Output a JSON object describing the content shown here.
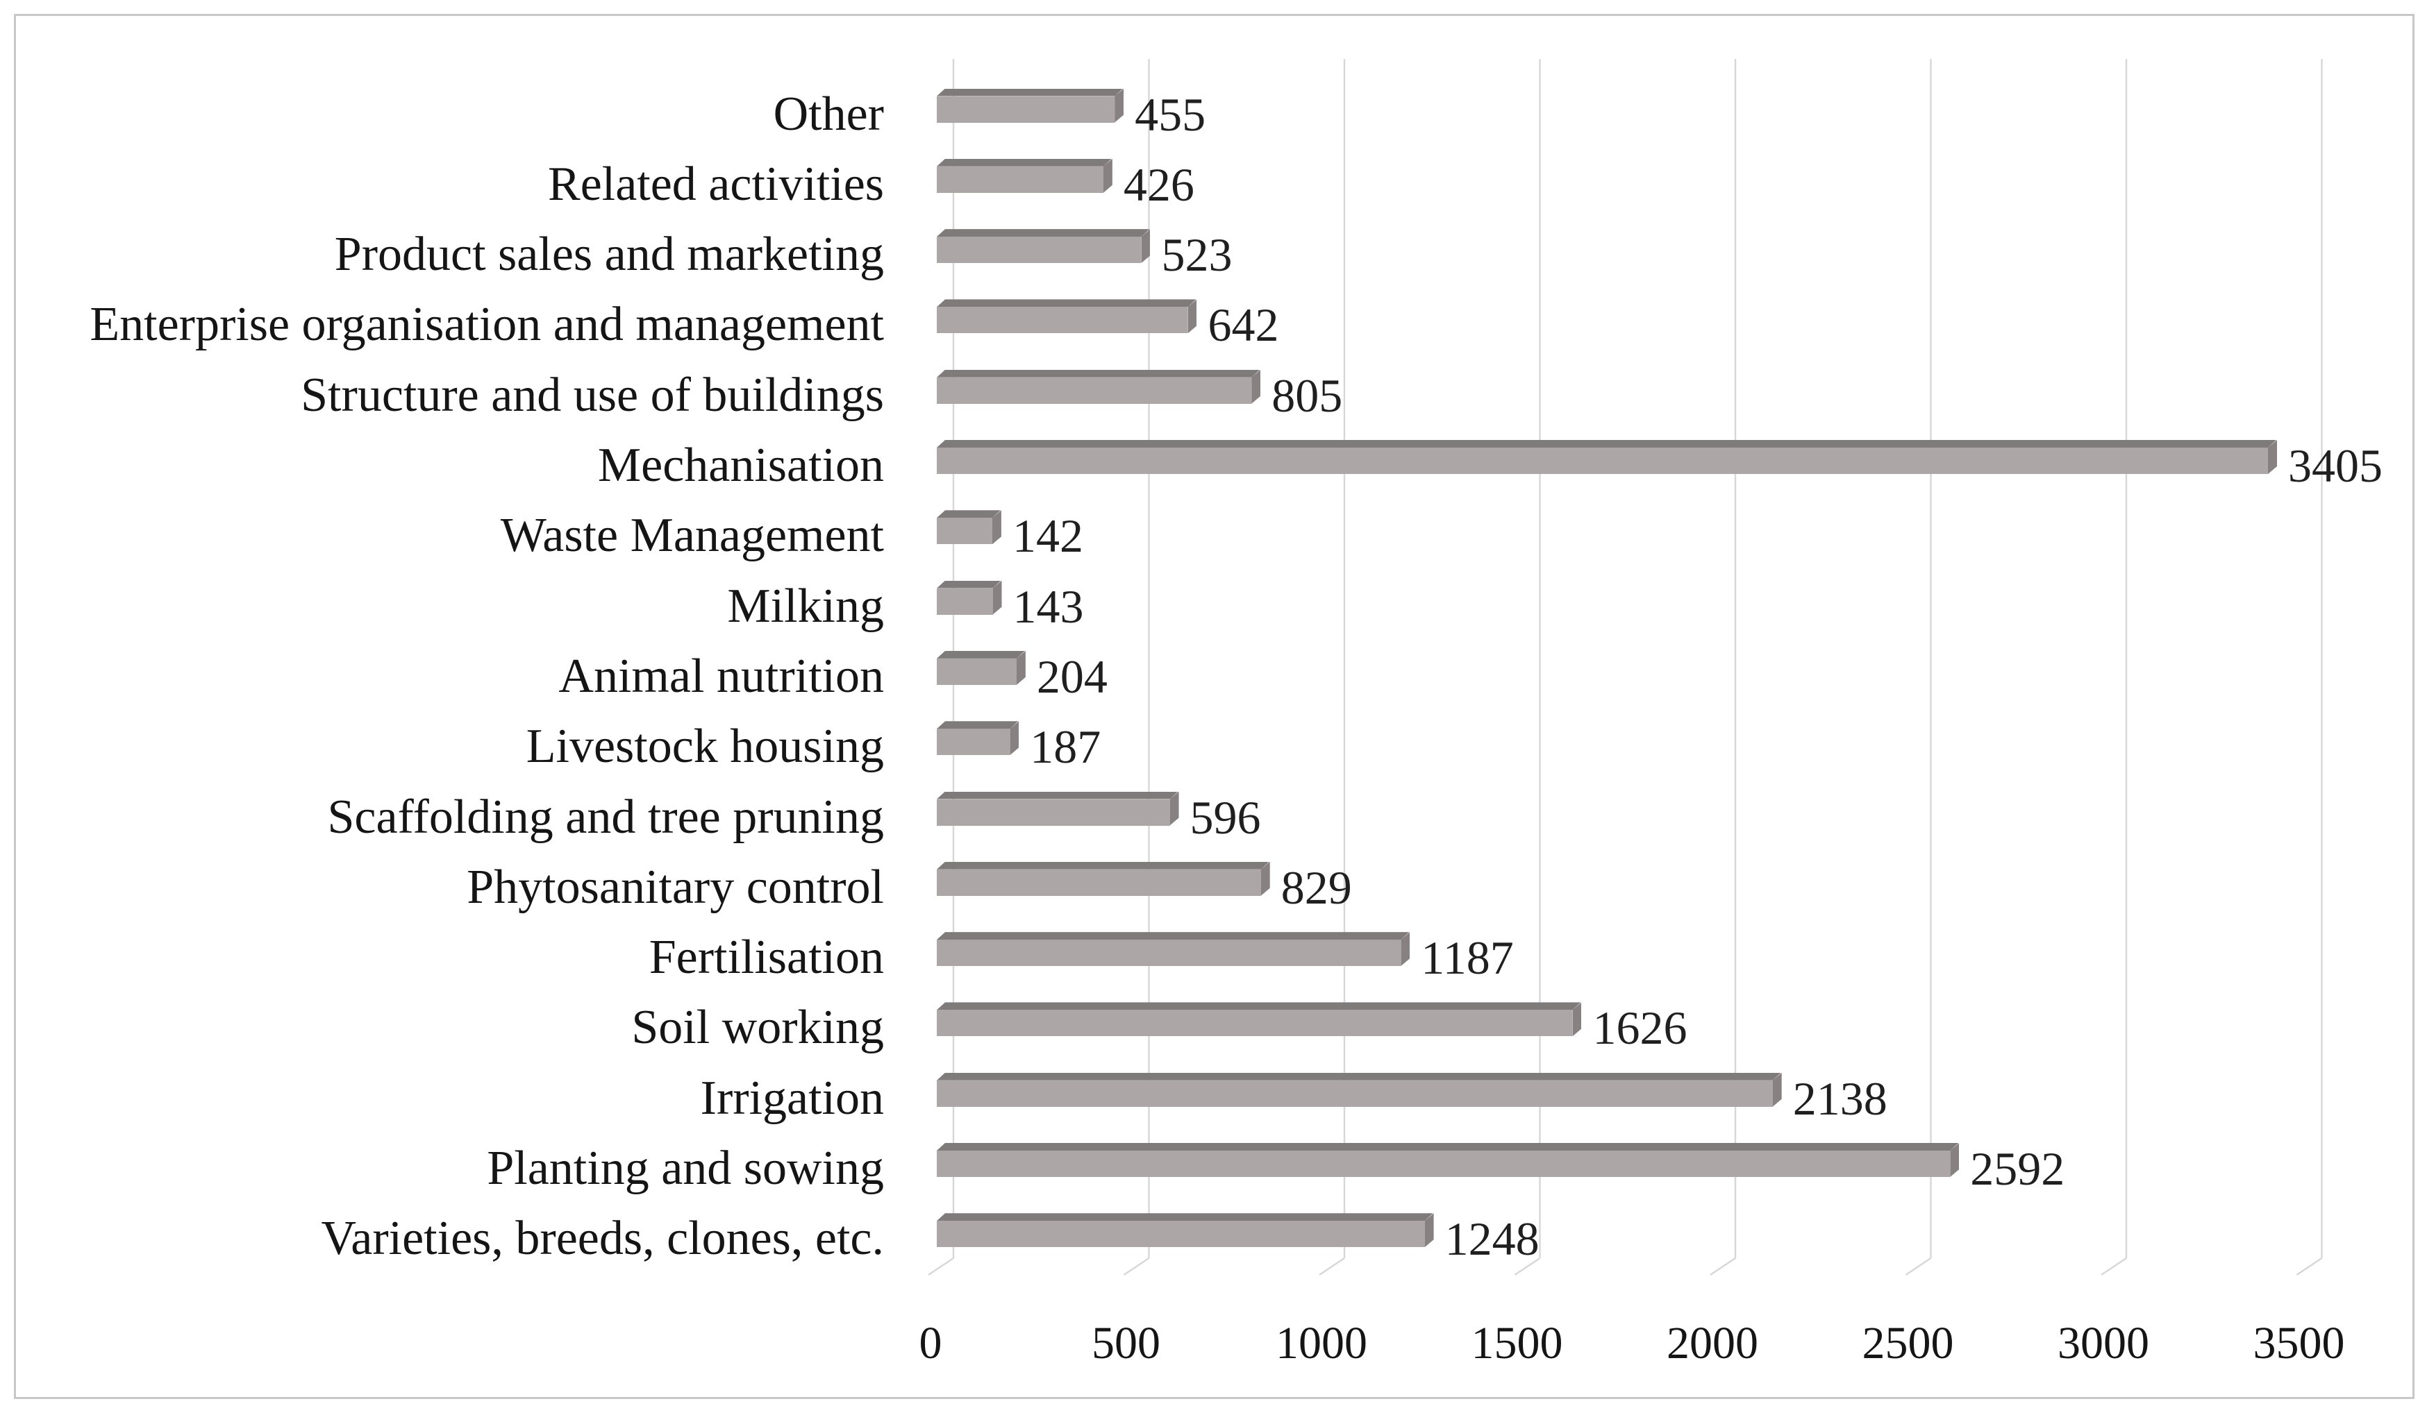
{
  "figure": {
    "background_color": "#ffffff",
    "border_color": "#c8c8c8"
  },
  "chart_data": {
    "type": "bar",
    "orientation": "horizontal",
    "title": "",
    "xlabel": "",
    "ylabel": "",
    "categories": [
      "Other",
      "Related activities",
      "Product sales and marketing",
      "Enterprise organisation and management",
      "Structure and use of buildings",
      "Mechanisation",
      "Waste Management",
      "Milking",
      "Animal nutrition",
      "Livestock housing",
      "Scaffolding and tree pruning",
      "Phytosanitary control",
      "Fertilisation",
      "Soil working",
      "Irrigation",
      "Planting and sowing",
      "Varieties, breeds, clones, etc."
    ],
    "values": [
      455,
      426,
      523,
      642,
      805,
      3405,
      142,
      143,
      204,
      187,
      596,
      829,
      1187,
      1626,
      2138,
      2592,
      1248
    ],
    "value_labels": [
      "455",
      "426",
      "523",
      "642",
      "805",
      "3405",
      "142",
      "143",
      "204",
      "187",
      "596",
      "829",
      "1187",
      "1626",
      "2138",
      "2592",
      "1248"
    ],
    "x_ticks": [
      0,
      500,
      1000,
      1500,
      2000,
      2500,
      3000,
      3500
    ],
    "x_tick_labels": [
      "0",
      "500",
      "1000",
      "1500",
      "2000",
      "2500",
      "3000",
      "3500"
    ],
    "xlim": [
      0,
      3500
    ],
    "grid": true,
    "legend": false,
    "style": {
      "bar_face_color": "#aca7a6",
      "bar_top_color": "#807b7b",
      "bar_cap_color": "#878181",
      "gridline_color": "#d7d7d7",
      "text_color": "#1d1d1d",
      "effect_3d": "beveled box bars with skewed floor ticks"
    }
  }
}
